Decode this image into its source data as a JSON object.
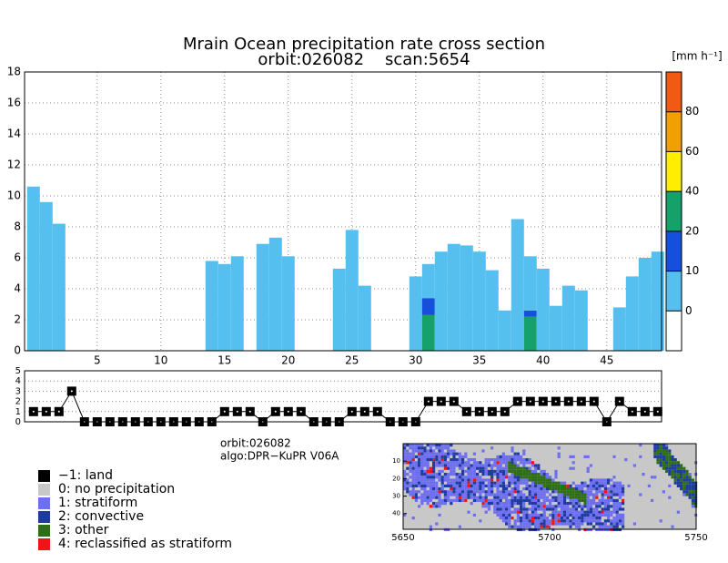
{
  "chart_data": [
    {
      "type": "bar",
      "title": "Mrain Ocean precipitation rate cross section",
      "subtitle": "orbit:026082    scan:5654",
      "x": [
        0,
        1,
        2,
        3,
        4,
        5,
        6,
        7,
        8,
        9,
        10,
        11,
        12,
        13,
        14,
        15,
        16,
        17,
        18,
        19,
        20,
        21,
        22,
        23,
        24,
        25,
        26,
        27,
        28,
        29,
        30,
        31,
        32,
        33,
        34,
        35,
        36,
        37,
        38,
        39,
        40,
        41,
        42,
        43,
        44,
        45,
        46,
        47,
        48,
        49
      ],
      "series": [
        {
          "color": "#16a06a",
          "values": [
            null,
            null,
            null,
            null,
            null,
            null,
            null,
            null,
            null,
            null,
            null,
            null,
            null,
            null,
            null,
            null,
            null,
            null,
            null,
            null,
            null,
            null,
            null,
            null,
            null,
            null,
            null,
            null,
            null,
            null,
            null,
            2.3,
            null,
            null,
            null,
            null,
            null,
            null,
            null,
            2.2,
            null,
            null,
            null,
            null,
            null,
            null,
            null,
            null,
            null,
            null
          ]
        },
        {
          "color": "#1450dc",
          "values": [
            null,
            null,
            null,
            null,
            null,
            null,
            null,
            null,
            null,
            null,
            null,
            null,
            null,
            null,
            null,
            null,
            null,
            null,
            null,
            null,
            null,
            null,
            null,
            null,
            null,
            null,
            null,
            null,
            null,
            null,
            null,
            1.1,
            null,
            null,
            null,
            null,
            null,
            null,
            null,
            0.4,
            null,
            null,
            null,
            null,
            null,
            null,
            null,
            null,
            null,
            null
          ]
        },
        {
          "color": "#55c0f0",
          "values": [
            10.6,
            9.6,
            8.2,
            null,
            null,
            null,
            null,
            null,
            null,
            null,
            null,
            null,
            null,
            null,
            5.8,
            5.6,
            6.1,
            null,
            6.9,
            7.3,
            6.1,
            null,
            null,
            null,
            5.3,
            7.8,
            4.2,
            null,
            null,
            null,
            4.8,
            2.2,
            6.4,
            6.9,
            6.8,
            6.4,
            5.2,
            2.6,
            8.5,
            3.5,
            5.3,
            2.9,
            4.2,
            3.9,
            null,
            null,
            2.8,
            4.8,
            6.0,
            6.4
          ]
        }
      ],
      "xlim": [
        -0.7,
        49.3
      ],
      "xticks": [
        5,
        10,
        15,
        20,
        25,
        30,
        35,
        40,
        45
      ],
      "ylim": [
        0,
        18
      ],
      "yticks": [
        0,
        2,
        4,
        6,
        8,
        10,
        12,
        14,
        16,
        18
      ],
      "grid": true,
      "colorbar": {
        "label": "[mm h⁻¹]",
        "ticks": [
          0,
          10,
          20,
          40,
          60,
          80
        ],
        "colors": [
          "#ffffff",
          "#55c0f0",
          "#1450dc",
          "#16a06a",
          "#ffee00",
          "#f0a000",
          "#f05a14"
        ]
      }
    },
    {
      "type": "line",
      "x": [
        0,
        1,
        2,
        3,
        4,
        5,
        6,
        7,
        8,
        9,
        10,
        11,
        12,
        13,
        14,
        15,
        16,
        17,
        18,
        19,
        20,
        21,
        22,
        23,
        24,
        25,
        26,
        27,
        28,
        29,
        30,
        31,
        32,
        33,
        34,
        35,
        36,
        37,
        38,
        39,
        40,
        41,
        42,
        43,
        44,
        45,
        46,
        47,
        48,
        49
      ],
      "values": [
        1,
        1,
        1,
        3,
        0,
        0,
        0,
        0,
        0,
        0,
        0,
        0,
        0,
        0,
        0,
        1,
        1,
        1,
        0,
        1,
        1,
        1,
        0,
        0,
        0,
        1,
        1,
        1,
        0,
        0,
        0,
        2,
        2,
        2,
        1,
        1,
        1,
        1,
        2,
        2,
        2,
        2,
        2,
        2,
        2,
        0,
        2,
        1,
        1,
        1
      ],
      "xlim": [
        -0.7,
        49.3
      ],
      "ylim": [
        0,
        5
      ],
      "yticks": [
        0,
        1,
        2,
        3,
        4,
        5
      ],
      "grid": true,
      "color": "#000000"
    },
    {
      "type": "map",
      "annotations": [
        "orbit:026082",
        "algo:DPR−KuPR V06A"
      ],
      "xlim": [
        5650,
        5750
      ],
      "xticks": [
        5650,
        5700,
        5750
      ],
      "ylim": [
        0,
        49
      ],
      "yticks": [
        10,
        20,
        30,
        40
      ],
      "legend": [
        {
          "name": "−1: land",
          "color": "#000000"
        },
        {
          "name": "0: no precipitation",
          "color": "#c8c8c8"
        },
        {
          "name": "1: stratiform",
          "color": "#6e6ef0"
        },
        {
          "name": "2: convective",
          "color": "#1e3ca0"
        },
        {
          "name": "3: other",
          "color": "#2e6e14"
        },
        {
          "name": "4: reclassified as stratiform",
          "color": "#f01414"
        }
      ]
    }
  ]
}
